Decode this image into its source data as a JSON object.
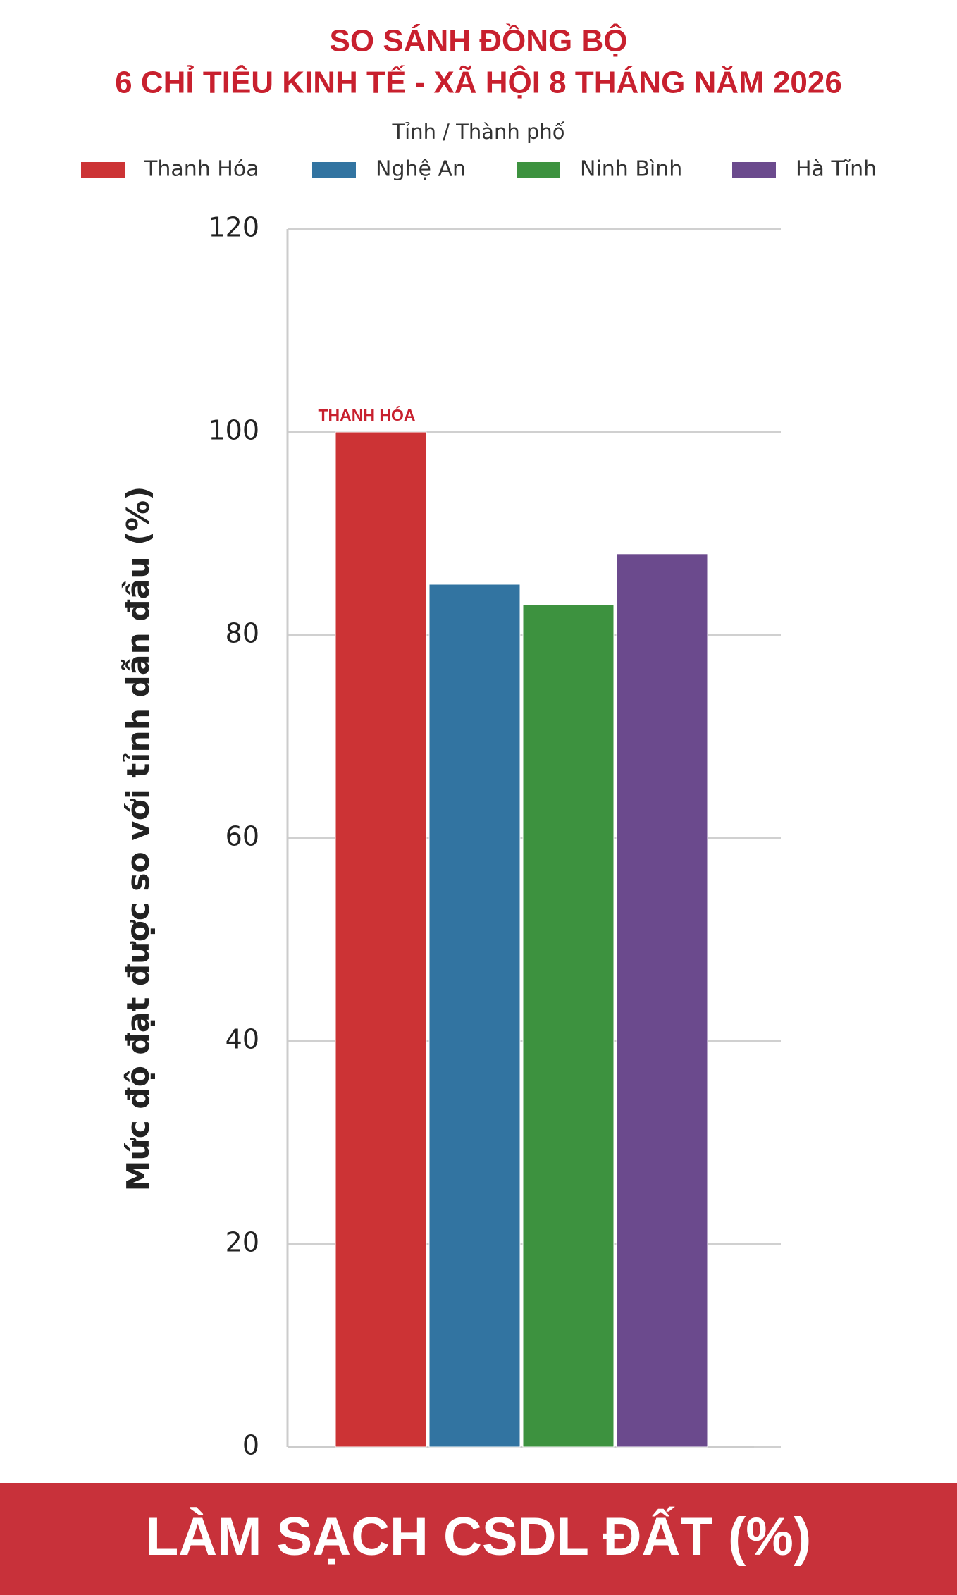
{
  "chart_data": {
    "type": "bar",
    "title": [
      "SO SÁNH ĐỒNG BỘ",
      "6 CHỈ TIÊU KINH TẾ - XÃ HỘI 8 THÁNG NĂM 2026"
    ],
    "legend_title": "Tỉnh / Thành phố",
    "ylabel": "Mức độ đạt được so với tỉnh dẫn đầu (%)",
    "banner": "LÀM SẠCH CSDL ĐẤT (%)",
    "annotation": "THANH HÓA",
    "categories": [
      null
    ],
    "series": [
      {
        "name": "Thanh Hóa",
        "color": "#cc3335",
        "values": [
          100
        ]
      },
      {
        "name": "Nghệ An",
        "color": "#3274a1",
        "values": [
          85
        ]
      },
      {
        "name": "Ninh Bình",
        "color": "#3d923f",
        "values": [
          83
        ]
      },
      {
        "name": "Hà Tĩnh",
        "color": "#6b4a8d",
        "values": [
          88
        ]
      }
    ],
    "ylim": [
      0,
      120
    ],
    "yticks": [
      0,
      20,
      40,
      60,
      80,
      100,
      120
    ],
    "grid": true
  }
}
